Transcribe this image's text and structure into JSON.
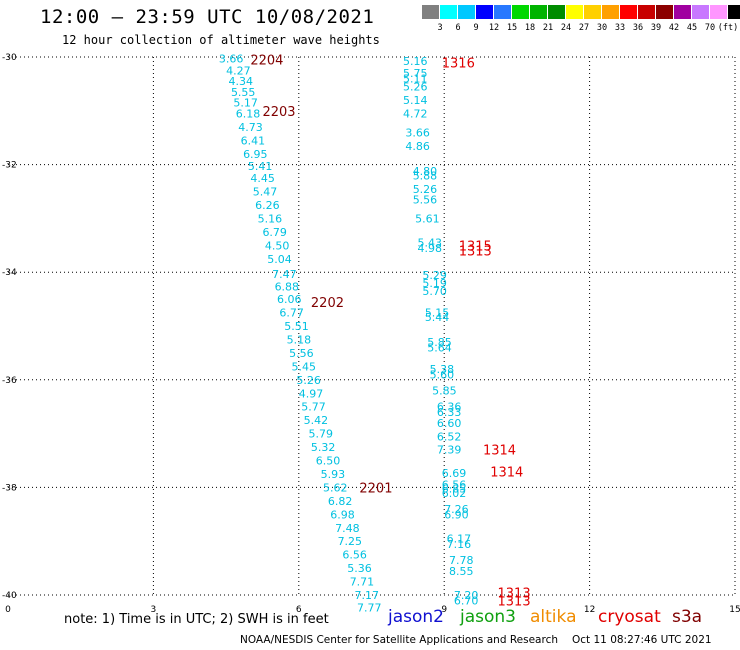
{
  "header": {
    "title": "12:00 – 23:59 UTC 10/08/2021",
    "subtitle": "12 hour collection of altimeter wave heights"
  },
  "colorbar": {
    "colors": [
      "#808080",
      "#00ffff",
      "#00c8ff",
      "#0000ff",
      "#2878ff",
      "#00d800",
      "#00b400",
      "#008c00",
      "#ffff00",
      "#ffd000",
      "#ffa000",
      "#ff0000",
      "#c80000",
      "#8c0000",
      "#a000a0",
      "#c878ff",
      "#ff96ff",
      "#000000"
    ],
    "labels": [
      "3",
      "6",
      "9",
      "12",
      "15",
      "18",
      "21",
      "24",
      "27",
      "30",
      "33",
      "36",
      "39",
      "42",
      "45",
      "70",
      "(ft)"
    ]
  },
  "note": "note: 1) Time is in UTC; 2) SWH is in feet",
  "satellites": [
    {
      "name": "jason2",
      "color": "#1010d0"
    },
    {
      "name": "jason3",
      "color": "#10a010"
    },
    {
      "name": "altika",
      "color": "#f08c00"
    },
    {
      "name": "cryosat",
      "color": "#e00000"
    },
    {
      "name": "s3a",
      "color": "#800000"
    }
  ],
  "footer": {
    "credit": "NOAA/NESDIS Center for Satellite Applications and Research",
    "timestamp": "Oct 11 08:27:46 UTC 2021"
  },
  "chart_data": {
    "type": "scatter",
    "xlim": [
      0,
      15
    ],
    "ylim": [
      -40,
      -30
    ],
    "xticks": [
      0,
      3,
      6,
      9,
      12,
      15
    ],
    "yticks": [
      -30,
      -32,
      -34,
      -36,
      -38,
      -40
    ],
    "grid": true,
    "point_color": "#00c0e0",
    "tracks": [
      {
        "id": "left-track",
        "points": [
          {
            "x": 4.35,
            "y": -30.03,
            "v": "3.66"
          },
          {
            "x": 4.5,
            "y": -30.25,
            "v": "4.27"
          },
          {
            "x": 4.55,
            "y": -30.45,
            "v": "4.34"
          },
          {
            "x": 4.6,
            "y": -30.65,
            "v": "5.55"
          },
          {
            "x": 4.65,
            "y": -30.85,
            "v": "5.17"
          },
          {
            "x": 4.7,
            "y": -31.05,
            "v": "6.18"
          },
          {
            "x": 4.75,
            "y": -31.3,
            "v": "4.73"
          },
          {
            "x": 4.8,
            "y": -31.55,
            "v": "6.41"
          },
          {
            "x": 4.85,
            "y": -31.8,
            "v": "6.95"
          },
          {
            "x": 4.95,
            "y": -32.03,
            "v": "5.41"
          },
          {
            "x": 5.0,
            "y": -32.25,
            "v": "4.45"
          },
          {
            "x": 5.05,
            "y": -32.5,
            "v": "5.47"
          },
          {
            "x": 5.1,
            "y": -32.75,
            "v": "6.26"
          },
          {
            "x": 5.15,
            "y": -33.0,
            "v": "5.16"
          },
          {
            "x": 5.25,
            "y": -33.25,
            "v": "6.79"
          },
          {
            "x": 5.3,
            "y": -33.5,
            "v": "4.50"
          },
          {
            "x": 5.35,
            "y": -33.75,
            "v": "5.04"
          },
          {
            "x": 5.45,
            "y": -34.03,
            "v": "7.47"
          },
          {
            "x": 5.5,
            "y": -34.27,
            "v": "6.88"
          },
          {
            "x": 5.55,
            "y": -34.5,
            "v": "6.06"
          },
          {
            "x": 5.6,
            "y": -34.75,
            "v": "6.77"
          },
          {
            "x": 5.7,
            "y": -35.0,
            "v": "5.51"
          },
          {
            "x": 5.75,
            "y": -35.25,
            "v": "5.18"
          },
          {
            "x": 5.8,
            "y": -35.5,
            "v": "5.56"
          },
          {
            "x": 5.85,
            "y": -35.75,
            "v": "5.45"
          },
          {
            "x": 5.95,
            "y": -36.0,
            "v": "5.26"
          },
          {
            "x": 6.0,
            "y": -36.25,
            "v": "4.97"
          },
          {
            "x": 6.05,
            "y": -36.5,
            "v": "5.77"
          },
          {
            "x": 6.1,
            "y": -36.75,
            "v": "5.42"
          },
          {
            "x": 6.2,
            "y": -37.0,
            "v": "5.79"
          },
          {
            "x": 6.25,
            "y": -37.25,
            "v": "5.32"
          },
          {
            "x": 6.35,
            "y": -37.5,
            "v": "6.50"
          },
          {
            "x": 6.45,
            "y": -37.75,
            "v": "5.93"
          },
          {
            "x": 6.5,
            "y": -38.0,
            "v": "5.62"
          },
          {
            "x": 6.6,
            "y": -38.25,
            "v": "6.82"
          },
          {
            "x": 6.65,
            "y": -38.5,
            "v": "6.98"
          },
          {
            "x": 6.75,
            "y": -38.75,
            "v": "7.48"
          },
          {
            "x": 6.8,
            "y": -39.0,
            "v": "7.25"
          },
          {
            "x": 6.9,
            "y": -39.25,
            "v": "6.56"
          },
          {
            "x": 7.0,
            "y": -39.5,
            "v": "5.36"
          },
          {
            "x": 7.05,
            "y": -39.75,
            "v": "7.71"
          },
          {
            "x": 7.15,
            "y": -40.0,
            "v": "7.17"
          },
          {
            "x": 7.2,
            "y": -40.23,
            "v": "7.77"
          }
        ]
      },
      {
        "id": "right-track",
        "points": [
          {
            "x": 8.15,
            "y": -30.07,
            "v": "5.16"
          },
          {
            "x": 8.15,
            "y": -30.3,
            "v": "5.75"
          },
          {
            "x": 8.15,
            "y": -30.4,
            "v": "5.11"
          },
          {
            "x": 8.15,
            "y": -30.55,
            "v": "5.26"
          },
          {
            "x": 8.15,
            "y": -30.8,
            "v": "5.14"
          },
          {
            "x": 8.15,
            "y": -31.05,
            "v": "4.72"
          },
          {
            "x": 8.2,
            "y": -31.4,
            "v": "3.66"
          },
          {
            "x": 8.2,
            "y": -31.65,
            "v": "4.86"
          },
          {
            "x": 8.35,
            "y": -32.12,
            "v": "4.80"
          },
          {
            "x": 8.35,
            "y": -32.2,
            "v": "5.88"
          },
          {
            "x": 8.35,
            "y": -32.45,
            "v": "5.26"
          },
          {
            "x": 8.35,
            "y": -32.65,
            "v": "5.56"
          },
          {
            "x": 8.4,
            "y": -33.0,
            "v": "5.61"
          },
          {
            "x": 8.45,
            "y": -33.45,
            "v": "5.43"
          },
          {
            "x": 8.45,
            "y": -33.55,
            "v": "4.98"
          },
          {
            "x": 8.55,
            "y": -34.05,
            "v": "5.29"
          },
          {
            "x": 8.55,
            "y": -34.2,
            "v": "5.19"
          },
          {
            "x": 8.55,
            "y": -34.35,
            "v": "5.70"
          },
          {
            "x": 8.6,
            "y": -34.75,
            "v": "5.15"
          },
          {
            "x": 8.6,
            "y": -34.83,
            "v": "5.44"
          },
          {
            "x": 8.65,
            "y": -35.3,
            "v": "5.85"
          },
          {
            "x": 8.65,
            "y": -35.4,
            "v": "5.64"
          },
          {
            "x": 8.7,
            "y": -35.8,
            "v": "5.38"
          },
          {
            "x": 8.7,
            "y": -35.9,
            "v": "5.60"
          },
          {
            "x": 8.75,
            "y": -36.2,
            "v": "5.85"
          },
          {
            "x": 8.85,
            "y": -36.5,
            "v": "6.36"
          },
          {
            "x": 8.85,
            "y": -36.6,
            "v": "6.33"
          },
          {
            "x": 8.85,
            "y": -36.8,
            "v": "6.60"
          },
          {
            "x": 8.85,
            "y": -37.05,
            "v": "6.52"
          },
          {
            "x": 8.85,
            "y": -37.3,
            "v": "7.39"
          },
          {
            "x": 8.95,
            "y": -37.73,
            "v": "6.69"
          },
          {
            "x": 8.95,
            "y": -37.95,
            "v": "6.56"
          },
          {
            "x": 8.95,
            "y": -38.02,
            "v": "6.85"
          },
          {
            "x": 8.95,
            "y": -38.1,
            "v": "6.02"
          },
          {
            "x": 9.0,
            "y": -38.4,
            "v": "7.26"
          },
          {
            "x": 9.0,
            "y": -38.5,
            "v": "6.90"
          },
          {
            "x": 9.05,
            "y": -38.95,
            "v": "6.17"
          },
          {
            "x": 9.05,
            "y": -39.05,
            "v": "7.16"
          },
          {
            "x": 9.1,
            "y": -39.35,
            "v": "7.78"
          },
          {
            "x": 9.1,
            "y": -39.55,
            "v": "8.55"
          },
          {
            "x": 9.2,
            "y": -40.0,
            "v": "7.20"
          },
          {
            "x": 9.2,
            "y": -40.1,
            "v": "6.70"
          }
        ]
      }
    ],
    "annotations": [
      {
        "text": "2204",
        "x": 5.0,
        "y": -30.05,
        "color": "#800000"
      },
      {
        "text": "2203",
        "x": 5.25,
        "y": -31.0,
        "color": "#800000"
      },
      {
        "text": "2202",
        "x": 6.25,
        "y": -34.55,
        "color": "#800000"
      },
      {
        "text": "2201",
        "x": 7.25,
        "y": -38.0,
        "color": "#800000"
      },
      {
        "text": "1316",
        "x": 8.95,
        "y": -30.1,
        "color": "#e00000"
      },
      {
        "text": "1315",
        "x": 9.3,
        "y": -33.5,
        "color": "#e00000"
      },
      {
        "text": "1313",
        "x": 9.3,
        "y": -33.6,
        "color": "#e00000"
      },
      {
        "text": "1314",
        "x": 9.8,
        "y": -37.3,
        "color": "#e00000"
      },
      {
        "text": "1314",
        "x": 9.95,
        "y": -37.7,
        "color": "#e00000"
      },
      {
        "text": "1313",
        "x": 10.1,
        "y": -39.95,
        "color": "#e00000"
      },
      {
        "text": "1313",
        "x": 10.1,
        "y": -40.1,
        "color": "#e00000"
      }
    ]
  }
}
